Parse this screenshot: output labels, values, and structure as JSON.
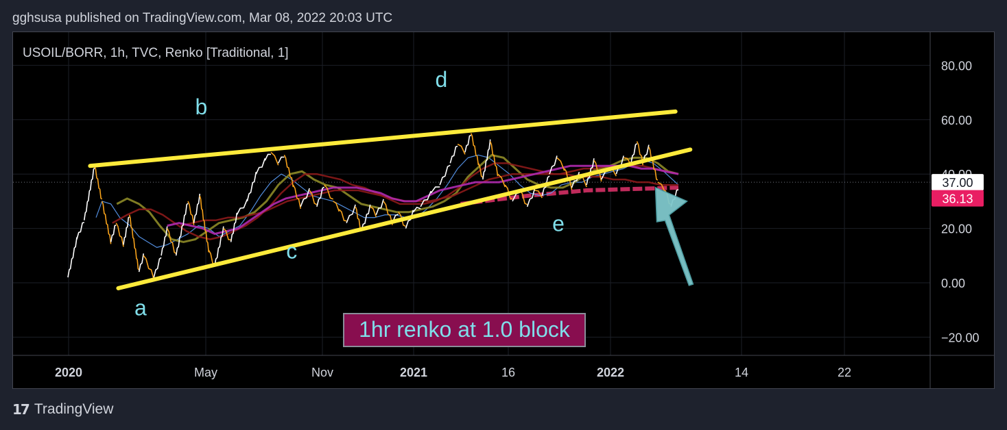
{
  "header": {
    "published_line": "gghsusa published on TradingView.com, Mar 08, 2022 20:03 UTC"
  },
  "footer": {
    "logo_mark": "17",
    "brand": "TradingView"
  },
  "chart_data": {
    "type": "line",
    "title": "USOIL/BORR, 1h, TVC, Renko [Traditional, 1]",
    "x_ticks": [
      "2020",
      "May",
      "Nov",
      "2021",
      "16",
      "2022",
      "14",
      "22"
    ],
    "y_ticks": [
      80,
      60,
      40,
      20,
      0,
      -20
    ],
    "y_tick_labels": [
      "80.00",
      "60.00",
      "40.00",
      "20.00",
      "0.00",
      "−20.00"
    ],
    "ylim": [
      -25,
      92
    ],
    "grid": true,
    "colors": {
      "price_up": "#ffffff",
      "price_down": "#f7a21b",
      "trendline": "#ffeb3b",
      "ma_fast": "#5b9cf6",
      "ma_mid": "#8d8a27",
      "ma_slow": "#8b1a1a",
      "ma_long": "#b02aaf",
      "support_zone": "#e0336b",
      "arrow": "#7fc8cc",
      "wave_label": "#80deea",
      "last_price_tag": "#ffffff",
      "ma_price_tag": "#e91e63"
    },
    "price_path": [
      [
        0.0,
        2
      ],
      [
        1.2,
        16
      ],
      [
        2.2,
        23
      ],
      [
        3.6,
        43
      ],
      [
        4.6,
        30
      ],
      [
        5.8,
        15
      ],
      [
        6.5,
        22
      ],
      [
        7.5,
        14
      ],
      [
        8.3,
        25
      ],
      [
        9.6,
        4
      ],
      [
        10.2,
        10
      ],
      [
        11.6,
        2
      ],
      [
        12.6,
        10
      ],
      [
        13.4,
        20
      ],
      [
        14.6,
        10
      ],
      [
        16.2,
        30
      ],
      [
        17.0,
        22
      ],
      [
        17.8,
        32
      ],
      [
        19.0,
        12
      ],
      [
        19.8,
        6
      ],
      [
        21.0,
        20
      ],
      [
        22.0,
        15
      ],
      [
        22.8,
        25
      ],
      [
        24.2,
        30
      ],
      [
        25.4,
        40
      ],
      [
        26.6,
        45
      ],
      [
        27.4,
        48
      ],
      [
        28.4,
        44
      ],
      [
        29.2,
        47
      ],
      [
        30.4,
        36
      ],
      [
        31.4,
        28
      ],
      [
        32.6,
        34
      ],
      [
        33.6,
        28
      ],
      [
        34.6,
        36
      ],
      [
        35.8,
        30
      ],
      [
        36.6,
        27
      ],
      [
        37.6,
        22
      ],
      [
        38.8,
        28
      ],
      [
        39.6,
        19
      ],
      [
        40.8,
        28
      ],
      [
        41.6,
        25
      ],
      [
        42.6,
        30
      ],
      [
        43.8,
        22
      ],
      [
        44.6,
        26
      ],
      [
        45.6,
        20
      ],
      [
        46.6,
        26
      ],
      [
        47.6,
        28
      ],
      [
        49.0,
        33
      ],
      [
        50.2,
        36
      ],
      [
        51.6,
        44
      ],
      [
        52.6,
        51
      ],
      [
        53.6,
        48
      ],
      [
        54.4,
        55
      ],
      [
        55.4,
        44
      ],
      [
        56.0,
        38
      ],
      [
        57.0,
        52
      ],
      [
        58.0,
        40
      ],
      [
        59.0,
        36
      ],
      [
        60.0,
        30
      ],
      [
        61.0,
        34
      ],
      [
        62.0,
        28
      ],
      [
        63.0,
        34
      ],
      [
        64.0,
        32
      ],
      [
        65.0,
        40
      ],
      [
        66.0,
        46
      ],
      [
        67.0,
        42
      ],
      [
        68.0,
        35
      ],
      [
        69.0,
        40
      ],
      [
        70.0,
        36
      ],
      [
        71.0,
        45
      ],
      [
        72.0,
        38
      ],
      [
        73.0,
        42
      ],
      [
        74.0,
        40
      ],
      [
        75.0,
        46
      ],
      [
        76.0,
        44
      ],
      [
        76.8,
        52
      ],
      [
        77.6,
        44
      ],
      [
        78.4,
        50
      ],
      [
        79.6,
        37
      ],
      [
        80.6,
        34
      ],
      [
        81.4,
        28
      ],
      [
        82.4,
        35
      ]
    ],
    "series": [
      {
        "values": [
          [
            3.8,
            24
          ],
          [
            4.6,
            30
          ],
          [
            5.8,
            29
          ],
          [
            7.0,
            24
          ],
          [
            8.4,
            21
          ],
          [
            9.6,
            17
          ],
          [
            10.8,
            15
          ],
          [
            12.0,
            13
          ],
          [
            13.4,
            14
          ],
          [
            14.8,
            16
          ],
          [
            16.2,
            18
          ],
          [
            17.6,
            21
          ],
          [
            19.0,
            20
          ],
          [
            20.4,
            17
          ],
          [
            21.8,
            19
          ],
          [
            23.2,
            21
          ],
          [
            24.6,
            26
          ],
          [
            26.0,
            32
          ],
          [
            27.4,
            37
          ],
          [
            28.8,
            40
          ],
          [
            30.2,
            38
          ],
          [
            31.6,
            35
          ],
          [
            33.0,
            32
          ],
          [
            34.4,
            31
          ],
          [
            35.8,
            30
          ],
          [
            37.2,
            28
          ],
          [
            38.6,
            26
          ],
          [
            40.0,
            24
          ],
          [
            41.4,
            24
          ],
          [
            42.8,
            25
          ],
          [
            44.2,
            25
          ],
          [
            45.6,
            24
          ],
          [
            47.0,
            24
          ],
          [
            48.4,
            27
          ],
          [
            49.8,
            31
          ],
          [
            51.2,
            36
          ],
          [
            52.6,
            42
          ],
          [
            54.0,
            46
          ],
          [
            55.4,
            47
          ],
          [
            56.8,
            46
          ],
          [
            58.2,
            43
          ],
          [
            59.6,
            40
          ],
          [
            61.0,
            36
          ],
          [
            62.4,
            33
          ],
          [
            63.8,
            32
          ],
          [
            65.2,
            33
          ],
          [
            66.6,
            36
          ],
          [
            68.0,
            37
          ],
          [
            69.4,
            37
          ],
          [
            70.8,
            39
          ],
          [
            72.2,
            40
          ],
          [
            73.6,
            41
          ],
          [
            75.0,
            42
          ],
          [
            76.4,
            44
          ],
          [
            77.8,
            45
          ],
          [
            79.0,
            44
          ],
          [
            80.4,
            41
          ],
          [
            81.6,
            38
          ],
          [
            82.4,
            36
          ]
        ]
      },
      {
        "values": [
          [
            6.6,
            29
          ],
          [
            8.0,
            31
          ],
          [
            9.6,
            29
          ],
          [
            11.0,
            26
          ],
          [
            12.4,
            21
          ],
          [
            14.0,
            16
          ],
          [
            15.6,
            15
          ],
          [
            17.2,
            16
          ],
          [
            18.8,
            19
          ],
          [
            20.4,
            22
          ],
          [
            22.0,
            23
          ],
          [
            23.6,
            24
          ],
          [
            25.2,
            26
          ],
          [
            26.8,
            30
          ],
          [
            28.4,
            36
          ],
          [
            30.0,
            40
          ],
          [
            31.6,
            41
          ],
          [
            33.2,
            38
          ],
          [
            34.8,
            36
          ],
          [
            36.4,
            35
          ],
          [
            38.0,
            32
          ],
          [
            39.6,
            29
          ],
          [
            41.2,
            28
          ],
          [
            42.8,
            27
          ],
          [
            44.4,
            26
          ],
          [
            46.0,
            26
          ],
          [
            47.6,
            27
          ],
          [
            49.2,
            28
          ],
          [
            50.8,
            30
          ],
          [
            52.4,
            33
          ],
          [
            54.0,
            39
          ],
          [
            55.6,
            43
          ],
          [
            57.2,
            47
          ],
          [
            58.8,
            46
          ],
          [
            60.4,
            42
          ],
          [
            62.0,
            38
          ],
          [
            63.6,
            36
          ],
          [
            65.2,
            35
          ],
          [
            66.8,
            35
          ],
          [
            68.4,
            37
          ],
          [
            70.0,
            40
          ],
          [
            71.6,
            42
          ],
          [
            73.2,
            43
          ],
          [
            74.8,
            45
          ],
          [
            76.4,
            46
          ],
          [
            78.0,
            46
          ],
          [
            79.6,
            44
          ],
          [
            81.0,
            41
          ],
          [
            82.4,
            40
          ]
        ]
      },
      {
        "values": [
          [
            15.2,
            21
          ],
          [
            16.8,
            22
          ],
          [
            18.4,
            23
          ],
          [
            20.0,
            23
          ],
          [
            21.6,
            24
          ],
          [
            23.2,
            24
          ],
          [
            24.8,
            25
          ],
          [
            26.4,
            26
          ],
          [
            28.0,
            28
          ],
          [
            29.6,
            30
          ],
          [
            31.2,
            31
          ],
          [
            32.8,
            32
          ],
          [
            34.4,
            33
          ],
          [
            36.0,
            34
          ],
          [
            37.6,
            34
          ],
          [
            39.2,
            34
          ],
          [
            40.8,
            33
          ],
          [
            42.4,
            32
          ],
          [
            44.0,
            31
          ],
          [
            45.6,
            30
          ],
          [
            47.2,
            30
          ],
          [
            48.8,
            30
          ],
          [
            50.4,
            31
          ],
          [
            52.0,
            32
          ],
          [
            53.6,
            34
          ],
          [
            55.2,
            36
          ],
          [
            56.8,
            38
          ],
          [
            58.4,
            39
          ],
          [
            60.0,
            40
          ],
          [
            61.6,
            40
          ],
          [
            63.2,
            40
          ],
          [
            64.8,
            40
          ],
          [
            66.4,
            40
          ],
          [
            68.0,
            41
          ],
          [
            69.6,
            42
          ],
          [
            71.2,
            42
          ],
          [
            72.8,
            43
          ],
          [
            74.4,
            43
          ],
          [
            76.0,
            43
          ],
          [
            77.6,
            43
          ],
          [
            79.2,
            42
          ],
          [
            80.8,
            41
          ],
          [
            82.4,
            40
          ]
        ]
      },
      {
        "values": [
          [
            6.0,
            22
          ],
          [
            8.0,
            25
          ],
          [
            9.6,
            27
          ],
          [
            11.2,
            27
          ],
          [
            12.8,
            25
          ],
          [
            14.4,
            22
          ],
          [
            16.0,
            19
          ],
          [
            17.6,
            17
          ],
          [
            19.2,
            16
          ],
          [
            20.8,
            17
          ],
          [
            22.4,
            19
          ],
          [
            24.0,
            21
          ],
          [
            25.6,
            24
          ],
          [
            27.2,
            28
          ],
          [
            28.8,
            33
          ],
          [
            30.4,
            37
          ],
          [
            32.0,
            40
          ],
          [
            33.6,
            40
          ],
          [
            35.2,
            39
          ],
          [
            36.8,
            38
          ],
          [
            38.4,
            36
          ],
          [
            40.0,
            35
          ],
          [
            41.6,
            33
          ],
          [
            43.2,
            31
          ],
          [
            44.8,
            29
          ],
          [
            46.4,
            29
          ],
          [
            48.0,
            29
          ],
          [
            49.6,
            30
          ],
          [
            51.2,
            32
          ],
          [
            52.8,
            35
          ],
          [
            54.4,
            39
          ],
          [
            56.0,
            42
          ],
          [
            57.6,
            44
          ],
          [
            59.2,
            44
          ],
          [
            60.8,
            43
          ],
          [
            62.4,
            42
          ],
          [
            64.0,
            41
          ],
          [
            65.6,
            40
          ],
          [
            67.2,
            40
          ],
          [
            68.8,
            39
          ],
          [
            70.4,
            39
          ],
          [
            72.0,
            39
          ],
          [
            73.6,
            38
          ],
          [
            75.2,
            38
          ],
          [
            76.8,
            37
          ],
          [
            78.4,
            37
          ],
          [
            80.0,
            36
          ],
          [
            82.4,
            36
          ]
        ]
      },
      {
        "values": [
          [
            13.4,
            21
          ],
          [
            15.0,
            22
          ],
          [
            16.6,
            21
          ],
          [
            18.2,
            20
          ],
          [
            19.8,
            18
          ],
          [
            21.4,
            19
          ],
          [
            23.0,
            20
          ],
          [
            24.6,
            23
          ],
          [
            26.2,
            26
          ],
          [
            27.8,
            29
          ],
          [
            29.4,
            31
          ],
          [
            31.0,
            32
          ],
          [
            32.6,
            33
          ],
          [
            34.2,
            34
          ],
          [
            35.8,
            35
          ],
          [
            37.4,
            35
          ],
          [
            39.0,
            35
          ],
          [
            40.6,
            34
          ],
          [
            42.2,
            33
          ],
          [
            43.8,
            31
          ],
          [
            45.4,
            30
          ],
          [
            47.0,
            30
          ],
          [
            48.6,
            32
          ],
          [
            50.2,
            34
          ],
          [
            51.8,
            35
          ],
          [
            53.4,
            36
          ],
          [
            55.0,
            37
          ],
          [
            56.6,
            37
          ],
          [
            58.2,
            37
          ],
          [
            59.8,
            38
          ],
          [
            61.4,
            39
          ],
          [
            63.0,
            40
          ],
          [
            64.6,
            41
          ],
          [
            66.2,
            42
          ],
          [
            67.8,
            43
          ],
          [
            69.4,
            43
          ],
          [
            71.0,
            43
          ],
          [
            72.6,
            43
          ],
          [
            74.2,
            43
          ],
          [
            75.8,
            43
          ],
          [
            77.4,
            42
          ],
          [
            79.0,
            42
          ],
          [
            80.6,
            41
          ],
          [
            82.4,
            40
          ]
        ]
      }
    ],
    "support_zone": [
      [
        53.0,
        29
      ],
      [
        62.0,
        32
      ],
      [
        70.0,
        34
      ],
      [
        82.4,
        35
      ]
    ],
    "trendlines": [
      {
        "name": "upper",
        "from": [
          3.0,
          43
        ],
        "to": [
          82.0,
          63
        ]
      },
      {
        "name": "lower",
        "from": [
          6.8,
          -2
        ],
        "to": [
          84.0,
          49
        ]
      }
    ],
    "wave_labels": [
      {
        "text": "a",
        "x": 9.8,
        "y": -12
      },
      {
        "text": "b",
        "x": 18.0,
        "y": 62
      },
      {
        "text": "c",
        "x": 30.2,
        "y": 9
      },
      {
        "text": "d",
        "x": 50.4,
        "y": 72
      },
      {
        "text": "e",
        "x": 66.2,
        "y": 19
      }
    ],
    "annotation": {
      "text": "1hr renko at 1.0 block"
    },
    "last_price": {
      "label": "37.00",
      "value": 37
    },
    "ma_price": {
      "label": "36.13",
      "value": 36.13
    }
  }
}
